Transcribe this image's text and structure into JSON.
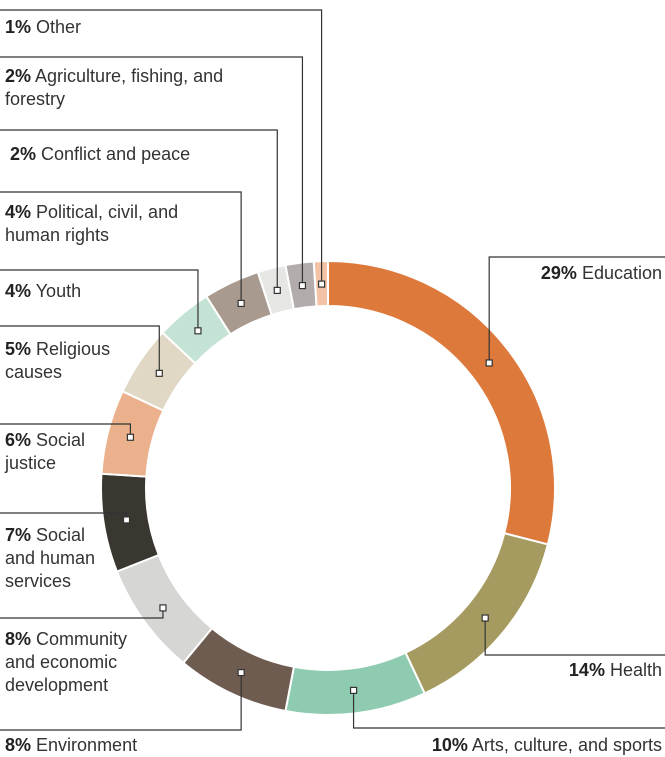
{
  "chart_data": {
    "type": "donut",
    "categories": [
      "Education",
      "Health",
      "Arts, culture, and sports",
      "Environment",
      "Community and economic development",
      "Social and human services",
      "Social justice",
      "Religious causes",
      "Youth",
      "Political, civil, and human rights",
      "Conflict and peace",
      "Agriculture, fishing, and forestry",
      "Other"
    ],
    "values": [
      29,
      14,
      10,
      8,
      8,
      7,
      6,
      5,
      4,
      4,
      2,
      2,
      1
    ],
    "value_labels": [
      "29%",
      "14%",
      "10%",
      "8%",
      "8%",
      "7%",
      "6%",
      "5%",
      "4%",
      "4%",
      "2%",
      "2%",
      "1%"
    ],
    "colors": [
      "#dc793b",
      "#a59b60",
      "#8ecbb0",
      "#6f5c51",
      "#d6d6d4",
      "#3a3630",
      "#ebb08c",
      "#e0d8c4",
      "#c4e3d4",
      "#a99a8f",
      "#e6e6e4",
      "#b3acad",
      "#f2c3a6"
    ]
  }
}
